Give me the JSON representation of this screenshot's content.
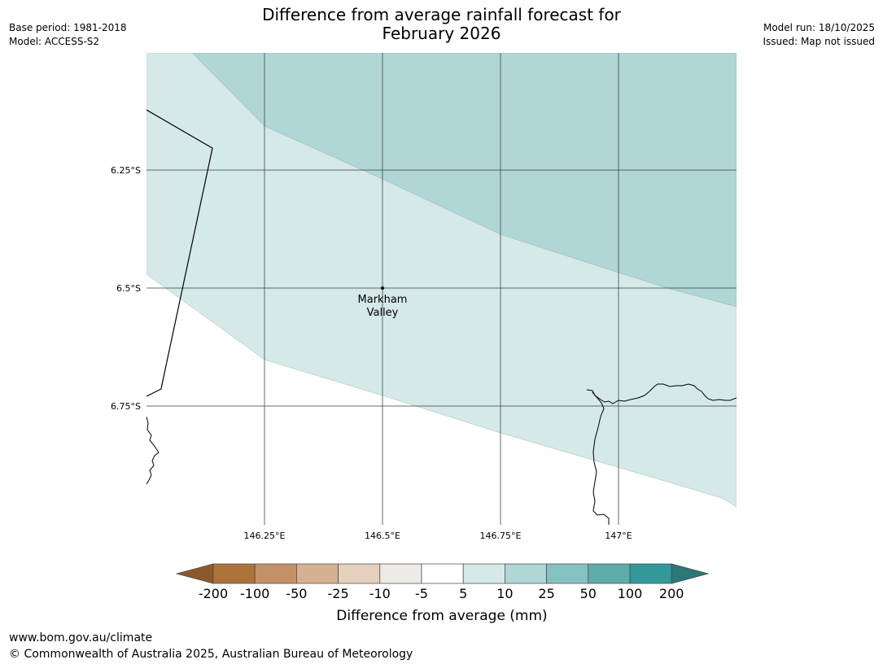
{
  "header": {
    "title_line1": "Difference from average rainfall forecast for",
    "title_line2": "February 2026",
    "left_line1": "Base period: 1981-2018",
    "left_line2": "Model: ACCESS-S2",
    "right_line1": "Model run: 18/10/2025",
    "right_line2": "Issued: Map not issued"
  },
  "map": {
    "lat_labels": [
      "6.25°S",
      "6.5°S",
      "6.75°S"
    ],
    "lon_labels": [
      "146.25°E",
      "146.5°E",
      "146.75°E",
      "147°E"
    ],
    "location_line1": "Markham",
    "location_line2": "Valley"
  },
  "colorbar": {
    "title": "Difference from average (mm)",
    "tick_labels": [
      "-200",
      "-100",
      "-50",
      "-25",
      "-10",
      "-5",
      "5",
      "10",
      "25",
      "50",
      "100",
      "200"
    ],
    "colors": [
      "#8c5a2a",
      "#ad733a",
      "#c39167",
      "#d5b194",
      "#e5cfbd",
      "#eeebe7",
      "#ffffff",
      "#d5e9e8",
      "#b0d6d6",
      "#85c1c0",
      "#5eacac",
      "#339899",
      "#2b7878"
    ]
  },
  "footer": {
    "url": "www.bom.gov.au/climate",
    "copyright": "© Commonwealth of Australia 2025, Australian Bureau of Meteorology"
  }
}
